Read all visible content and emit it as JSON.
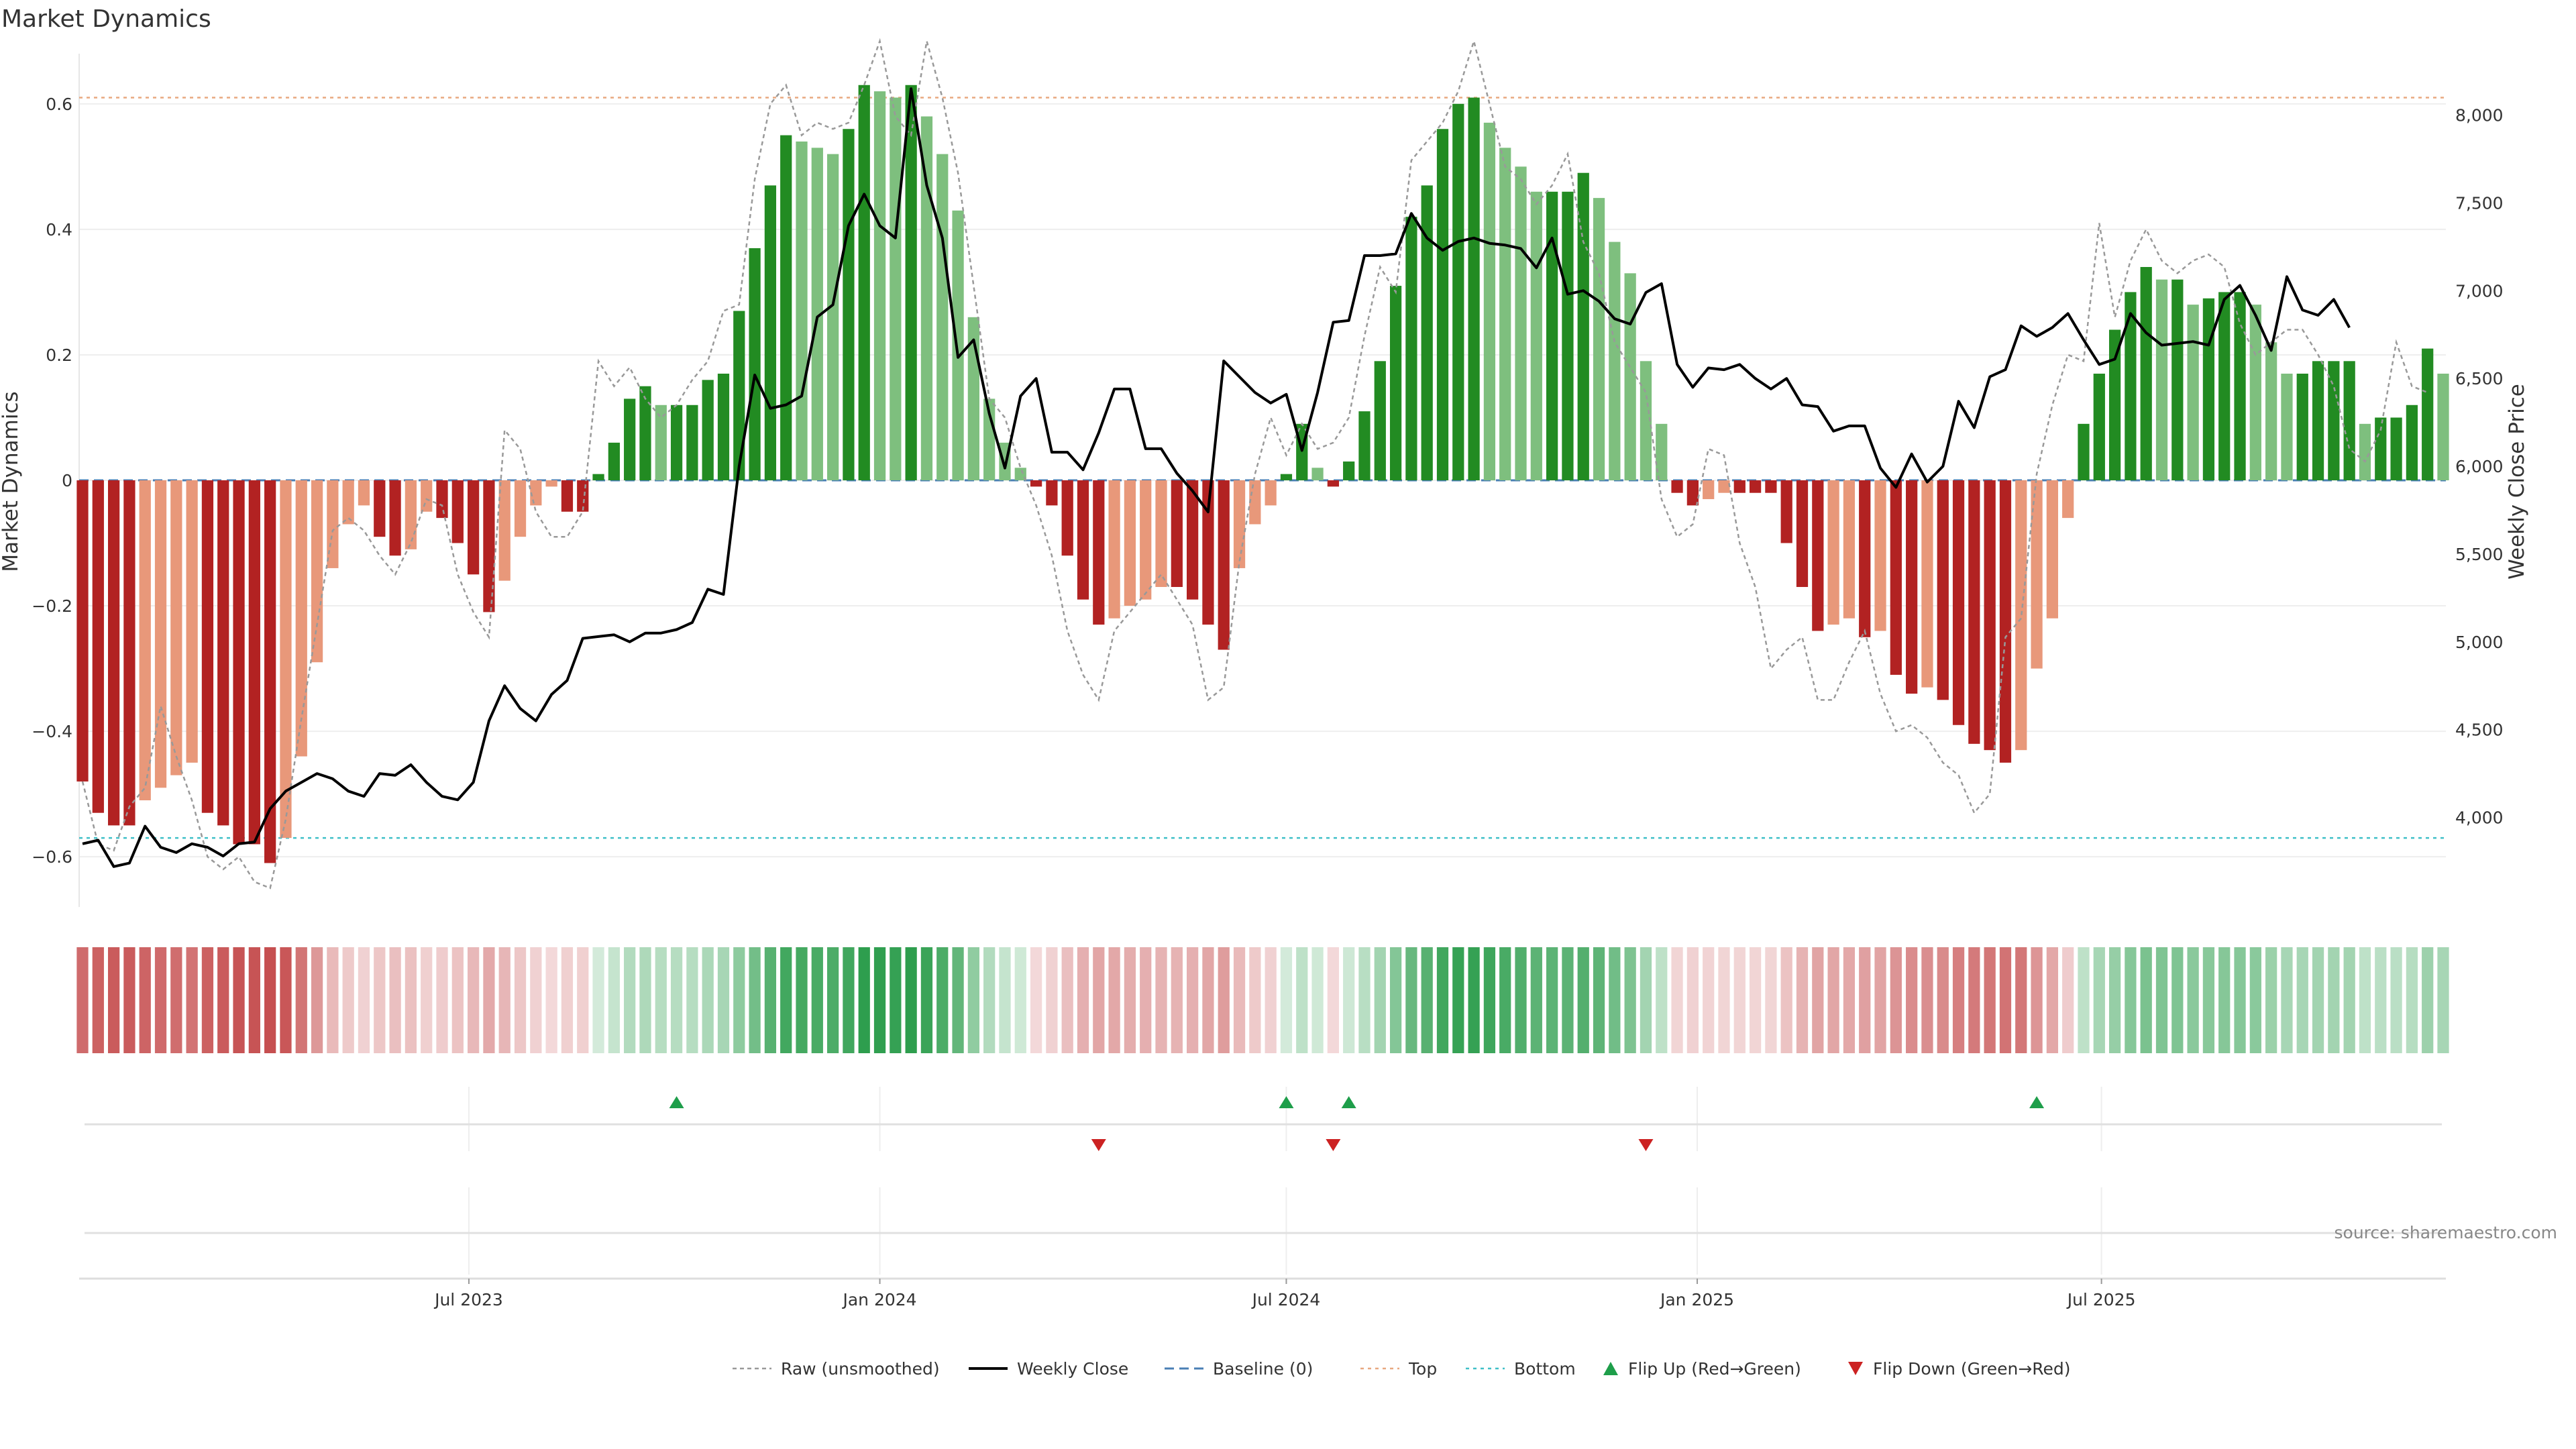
{
  "chart_data": {
    "type": "bar",
    "title": "Market Dynamics",
    "ylabel_left": "Market Dynamics",
    "ylabel_right": "Weekly Close Price",
    "source": "source: sharemaestro.com",
    "x_start": "2023-01-09",
    "x_step_days": 7,
    "x_ticks": [
      {
        "label": "Jul 2023",
        "date": "2023-07-01"
      },
      {
        "label": "Jan 2024",
        "date": "2024-01-01"
      },
      {
        "label": "Jul 2024",
        "date": "2024-07-01"
      },
      {
        "label": "Jan 2025",
        "date": "2025-01-01"
      },
      {
        "label": "Jul 2025",
        "date": "2025-07-01"
      }
    ],
    "y_left": {
      "ticks": [
        "0.6",
        "0.4",
        "0.2",
        "0",
        "−0.2",
        "−0.4",
        "−0.6"
      ],
      "tick_values": [
        0.6,
        0.4,
        0.2,
        0,
        -0.2,
        -0.4,
        -0.6
      ],
      "ylim": [
        -0.68,
        0.68
      ]
    },
    "y_right": {
      "ticks": [
        "8,000",
        "7,500",
        "7,000",
        "6,500",
        "6,000",
        "5,500",
        "5,000",
        "4,500",
        "4,000"
      ],
      "tick_values": [
        8000,
        7500,
        7000,
        6500,
        6000,
        5500,
        5000,
        4500,
        4000
      ],
      "ylim": [
        3490,
        8350
      ]
    },
    "top_level": 0.61,
    "bottom_level": -0.57,
    "baseline": 0,
    "dynamics": [
      -0.48,
      -0.53,
      -0.55,
      -0.55,
      -0.51,
      -0.49,
      -0.47,
      -0.45,
      -0.53,
      -0.55,
      -0.58,
      -0.58,
      -0.61,
      -0.57,
      -0.44,
      -0.29,
      -0.14,
      -0.07,
      -0.04,
      -0.09,
      -0.12,
      -0.11,
      -0.05,
      -0.06,
      -0.1,
      -0.15,
      -0.21,
      -0.16,
      -0.09,
      -0.04,
      -0.01,
      -0.05,
      -0.05,
      0.01,
      0.06,
      0.13,
      0.15,
      0.12,
      0.12,
      0.12,
      0.16,
      0.17,
      0.27,
      0.37,
      0.47,
      0.55,
      0.54,
      0.53,
      0.52,
      0.56,
      0.63,
      0.62,
      0.61,
      0.63,
      0.58,
      0.52,
      0.43,
      0.26,
      0.13,
      0.06,
      0.02,
      -0.01,
      -0.04,
      -0.12,
      -0.19,
      -0.23,
      -0.22,
      -0.2,
      -0.19,
      -0.17,
      -0.17,
      -0.19,
      -0.23,
      -0.27,
      -0.14,
      -0.07,
      -0.04,
      0.01,
      0.09,
      0.02,
      -0.01,
      0.03,
      0.11,
      0.19,
      0.31,
      0.42,
      0.47,
      0.56,
      0.6,
      0.61,
      0.57,
      0.53,
      0.5,
      0.46,
      0.46,
      0.46,
      0.49,
      0.45,
      0.38,
      0.33,
      0.19,
      0.09,
      -0.02,
      -0.04,
      -0.03,
      -0.02,
      -0.02,
      -0.02,
      -0.02,
      -0.1,
      -0.17,
      -0.24,
      -0.23,
      -0.22,
      -0.25,
      -0.24,
      -0.31,
      -0.34,
      -0.33,
      -0.35,
      -0.39,
      -0.42,
      -0.43,
      -0.45,
      -0.43,
      -0.3,
      -0.22,
      -0.06,
      0.09,
      0.17,
      0.24,
      0.3,
      0.34,
      0.32,
      0.32,
      0.28,
      0.29,
      0.3,
      0.3,
      0.28,
      0.22,
      0.17,
      0.17,
      0.19,
      0.19,
      0.19,
      0.09,
      0.1,
      0.1,
      0.12,
      0.21,
      0.17
    ],
    "raw": [
      -0.48,
      -0.58,
      -0.59,
      -0.52,
      -0.49,
      -0.36,
      -0.44,
      -0.51,
      -0.6,
      -0.62,
      -0.6,
      -0.64,
      -0.65,
      -0.54,
      -0.38,
      -0.23,
      -0.08,
      -0.06,
      -0.08,
      -0.12,
      -0.15,
      -0.1,
      -0.03,
      -0.04,
      -0.15,
      -0.21,
      -0.25,
      0.08,
      0.05,
      -0.05,
      -0.09,
      -0.09,
      -0.05,
      0.19,
      0.15,
      0.18,
      0.13,
      0.1,
      0.12,
      0.16,
      0.19,
      0.27,
      0.28,
      0.48,
      0.6,
      0.63,
      0.55,
      0.57,
      0.56,
      0.57,
      0.63,
      0.7,
      0.58,
      0.55,
      0.7,
      0.61,
      0.49,
      0.31,
      0.13,
      0.1,
      0.02,
      -0.04,
      -0.12,
      -0.24,
      -0.31,
      -0.35,
      -0.24,
      -0.21,
      -0.18,
      -0.15,
      -0.19,
      -0.23,
      -0.35,
      -0.33,
      -0.13,
      0.01,
      0.1,
      0.04,
      0.09,
      0.05,
      0.06,
      0.1,
      0.23,
      0.34,
      0.3,
      0.51,
      0.54,
      0.57,
      0.62,
      0.7,
      0.6,
      0.5,
      0.48,
      0.44,
      0.47,
      0.52,
      0.38,
      0.33,
      0.22,
      0.18,
      0.14,
      -0.03,
      -0.09,
      -0.07,
      0.05,
      0.04,
      -0.1,
      -0.17,
      -0.3,
      -0.27,
      -0.25,
      -0.35,
      -0.35,
      -0.29,
      -0.24,
      -0.34,
      -0.4,
      -0.39,
      -0.41,
      -0.45,
      -0.47,
      -0.53,
      -0.5,
      -0.25,
      -0.22,
      0.01,
      0.12,
      0.2,
      0.19,
      0.41,
      0.26,
      0.35,
      0.4,
      0.35,
      0.33,
      0.35,
      0.36,
      0.34,
      0.25,
      0.2,
      0.22,
      0.24,
      0.24,
      0.2,
      0.15,
      0.05,
      0.03,
      0.08,
      0.22,
      0.15,
      0.14
    ],
    "close": [
      3850,
      3870,
      3720,
      3740,
      3950,
      3830,
      3800,
      3850,
      3830,
      3780,
      3850,
      3860,
      4050,
      4150,
      4200,
      4250,
      4220,
      4150,
      4120,
      4250,
      4240,
      4300,
      4200,
      4120,
      4100,
      4200,
      4550,
      4750,
      4620,
      4550,
      4700,
      4780,
      5020,
      5030,
      5040,
      5000,
      5050,
      5050,
      5070,
      5110,
      5300,
      5270,
      6000,
      6520,
      6330,
      6350,
      6400,
      6850,
      6920,
      7370,
      7550,
      7370,
      7300,
      8150,
      7600,
      7300,
      6620,
      6720,
      6300,
      5990,
      6400,
      6500,
      6080,
      6080,
      5980,
      6190,
      6440,
      6440,
      6100,
      6100,
      5960,
      5860,
      5740,
      6600,
      6510,
      6420,
      6360,
      6410,
      6090,
      6420,
      6820,
      6830,
      7200,
      7200,
      7210,
      7440,
      7300,
      7230,
      7280,
      7300,
      7270,
      7260,
      7240,
      7130,
      7300,
      6980,
      7000,
      6940,
      6840,
      6810,
      6990,
      7040,
      6580,
      6450,
      6560,
      6550,
      6580,
      6500,
      6440,
      6500,
      6350,
      6340,
      6200,
      6230,
      6230,
      5990,
      5880,
      6070,
      5910,
      6000,
      6370,
      6220,
      6510,
      6550,
      6800,
      6740,
      6790,
      6870,
      6720,
      6580,
      6610,
      6870,
      6760,
      6690,
      6700,
      6710,
      6690,
      6950,
      7030,
      6860,
      6660,
      7080,
      6890,
      6860,
      6950,
      6790
    ],
    "flip_up_dates": [
      "2023-10-02",
      "2024-07-01",
      "2024-07-29",
      "2025-06-02"
    ],
    "flip_down_dates": [
      "2024-04-08",
      "2024-07-22",
      "2024-12-09"
    ],
    "colors": {
      "strong_green": "#228b22",
      "weak_green": "#7ebf7e",
      "strong_red": "#b22222",
      "weak_red": "#e8987a",
      "close_line": "#000000",
      "raw_line": "#999999",
      "baseline": "#4a7fb5",
      "top_line": "#e8a880",
      "bottom_line": "#40c0c8",
      "flip_up": "#1e9e4a",
      "flip_down": "#cc2222"
    },
    "legend": [
      {
        "label": "Raw (unsmoothed)",
        "style": "raw"
      },
      {
        "label": "Weekly Close",
        "style": "close"
      },
      {
        "label": "Baseline (0)",
        "style": "baseline"
      },
      {
        "label": "Top",
        "style": "top"
      },
      {
        "label": "Bottom",
        "style": "bottom"
      },
      {
        "label": "Flip Up (Red→Green)",
        "style": "up"
      },
      {
        "label": "Flip Down (Green→Red)",
        "style": "down"
      }
    ]
  }
}
